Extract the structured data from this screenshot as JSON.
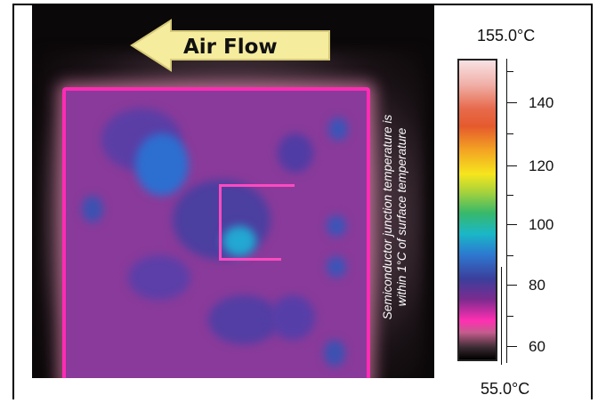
{
  "thermal_image": {
    "arrow_label": "Air Flow",
    "annotation": [
      "Semiconductor junction temperature is",
      "within 1°C of surface temperature"
    ]
  },
  "color_scale": {
    "max_label": "155.0°C",
    "min_label": "55.0°C",
    "ticks": [
      "140",
      "120",
      "100",
      "80",
      "60"
    ],
    "gradient_colors": [
      "#f7e2e4",
      "#e76b4d",
      "#f6e61d",
      "#38b86a",
      "#1ab7c7",
      "#3b3f9c",
      "#ff2fb2",
      "#000000"
    ]
  }
}
